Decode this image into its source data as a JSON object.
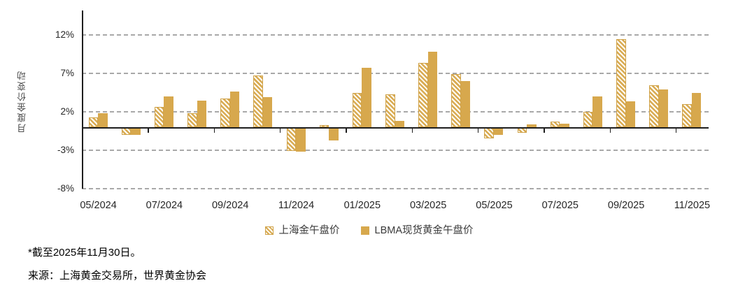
{
  "chart_data": {
    "type": "bar",
    "title": "",
    "ylabel": "月度金价变动",
    "grid": "horizontal-dashed",
    "legend_position": "bottom-center",
    "ylim": [
      -8,
      15.2
    ],
    "y_tick_values": [
      12,
      7,
      2,
      -3,
      -8
    ],
    "y_tick_labels": [
      "12%",
      "7%",
      "2%",
      "-3%",
      "-8%"
    ],
    "x_tick_labels": [
      "05/2024",
      "07/2024",
      "09/2024",
      "11/2024",
      "01/2025",
      "03/2025",
      "05/2025",
      "07/2025",
      "09/2025",
      "11/2025"
    ],
    "categories": [
      "05/2024",
      "06/2024",
      "07/2024",
      "08/2024",
      "09/2024",
      "10/2024",
      "11/2024",
      "12/2024",
      "01/2025",
      "02/2025",
      "03/2025",
      "04/2025",
      "05/2025",
      "06/2025",
      "07/2025",
      "08/2025",
      "09/2025",
      "10/2025",
      "11/2025"
    ],
    "series": [
      {
        "name": "上海金午盘价",
        "style": "hatched",
        "values": [
          1.3,
          -0.9,
          2.6,
          1.8,
          3.7,
          6.7,
          -3.0,
          0.3,
          4.5,
          4.3,
          8.4,
          6.9,
          -1.4,
          -0.6,
          0.7,
          2.0,
          11.5,
          5.5,
          3.0
        ]
      },
      {
        "name": "LBMA现货黄金午盘价",
        "style": "solid",
        "values": [
          1.8,
          -0.9,
          4.0,
          3.5,
          4.6,
          3.9,
          -3.1,
          -1.6,
          7.7,
          0.8,
          9.8,
          6.0,
          -0.9,
          0.4,
          0.5,
          4.0,
          3.4,
          4.9,
          4.5
        ]
      }
    ]
  },
  "legend": {
    "items": [
      {
        "label": "上海金午盘价",
        "swatch": "hatched"
      },
      {
        "label": "LBMA现货黄金午盘价",
        "swatch": "solid"
      }
    ]
  },
  "footnotes": {
    "asof": "*截至2025年11月30日。",
    "source": "来源：上海黄金交易所，世界黄金协会"
  },
  "colors": {
    "gold_solid": "#d7a84d",
    "hatch_stripe": "#d9ab53",
    "hatch_bg": "#fffef7",
    "hatch_border": "#cfa249",
    "gridline": "#a9a9a9",
    "axis": "#1e1e1e",
    "tick_text": "#262626",
    "ylabel_text": "#4a4a4a"
  }
}
